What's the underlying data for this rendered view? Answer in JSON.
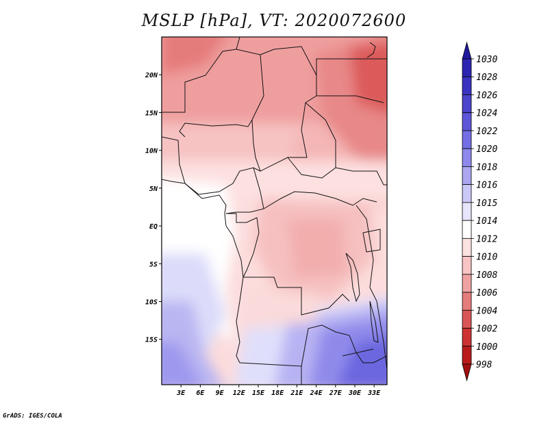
{
  "title": "MSLP [hPa], VT: 2020072600",
  "credit": "GrADS: IGES/COLA",
  "map": {
    "variable": "MSLP",
    "units": "hPa",
    "valid_time": "2020072600",
    "lon_range": [
      0,
      35
    ],
    "lat_range": [
      -21,
      25
    ],
    "lon_ticks": [
      "3E",
      "6E",
      "9E",
      "12E",
      "15E",
      "18E",
      "21E",
      "24E",
      "27E",
      "30E",
      "33E"
    ],
    "lat_ticks": [
      "20N",
      "15N",
      "10N",
      "5N",
      "EQ",
      "5S",
      "10S",
      "15S"
    ]
  },
  "colorbar": {
    "labels": [
      "1030",
      "1028",
      "1026",
      "1024",
      "1022",
      "1020",
      "1018",
      "1016",
      "1015",
      "1014",
      "1012",
      "1010",
      "1008",
      "1006",
      "1004",
      "1002",
      "1000",
      "998"
    ],
    "colors": [
      "#211a9e",
      "#2c25b1",
      "#3a33c0",
      "#4b44cc",
      "#5d56d8",
      "#736ee3",
      "#8d88ea",
      "#aaa6f0",
      "#cac8f6",
      "#e6e5fb",
      "#ffffff",
      "#fde2e2",
      "#f8c4c4",
      "#f0a2a2",
      "#e57c7c",
      "#d95555",
      "#cc3232",
      "#b91b1b",
      "#a10f0f"
    ]
  }
}
